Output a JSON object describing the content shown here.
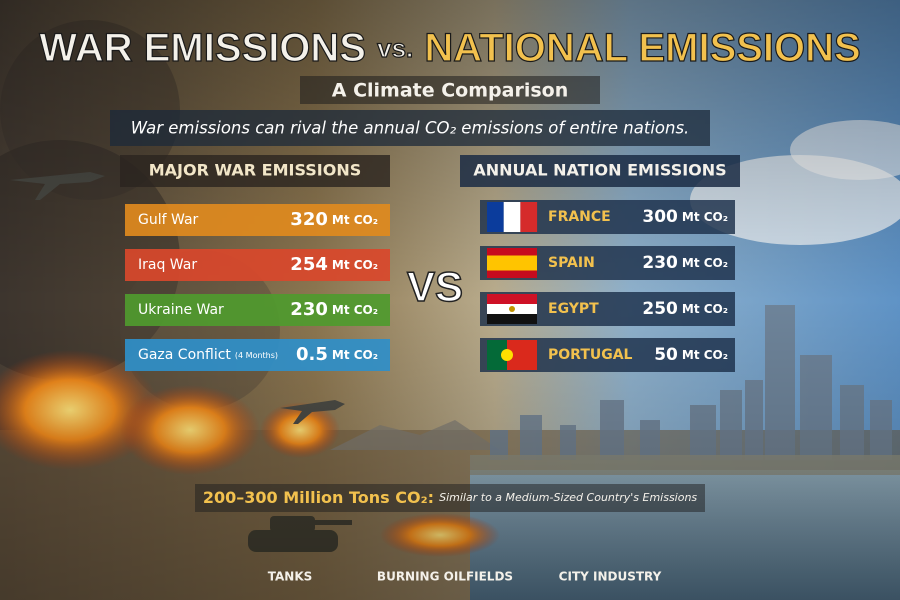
{
  "header": {
    "title_left": "WAR EMISSIONS",
    "title_mid": "vs.",
    "title_right": "NATIONAL EMISSIONS",
    "subtitle": "A Climate Comparison",
    "tagline": "War emissions can rival the annual CO₂ emissions of entire nations."
  },
  "war": {
    "heading": "MAJOR WAR EMISSIONS",
    "items": [
      {
        "name": "Gulf War",
        "value": 320,
        "unit": "Mt CO₂"
      },
      {
        "name": "Iraq War",
        "value": 254,
        "unit": "Mt CO₂"
      },
      {
        "name": "Ukraine War",
        "value": 230,
        "unit": "Mt CO₂"
      },
      {
        "name": "Gaza Conflict",
        "note": "(4 Months)",
        "value": 0.5,
        "unit": "Mt CO₂"
      }
    ]
  },
  "versus": "VS",
  "nations": {
    "heading": "ANNUAL NATION EMISSIONS",
    "items": [
      {
        "name": "FRANCE",
        "value": 300,
        "unit": "Mt CO₂"
      },
      {
        "name": "SPAIN",
        "value": 230,
        "unit": "Mt CO₂"
      },
      {
        "name": "EGYPT",
        "value": 250,
        "unit": "Mt CO₂"
      },
      {
        "name": "PORTUGAL",
        "value": 50,
        "unit": "Mt CO₂"
      }
    ]
  },
  "footer": {
    "highlight": "200–300 Million Tons CO₂:",
    "text": "Similar to a Medium-Sized Country's Emissions"
  },
  "scenes": [
    "TANKS",
    "BURNING OILFIELDS",
    "CITY INDUSTRY"
  ]
}
